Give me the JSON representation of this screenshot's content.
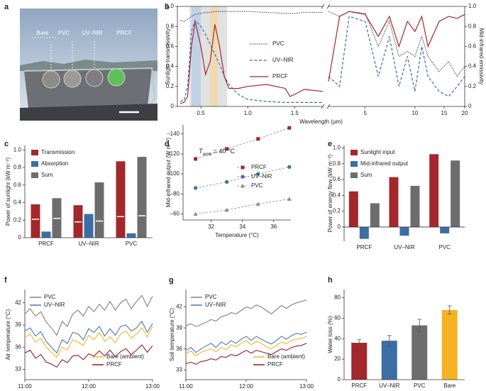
{
  "photo": {
    "panel": "a",
    "labels": [
      "Bare",
      "PVC",
      "UV–NIR",
      "PRCF"
    ]
  },
  "chart_data": [
    {
      "panel": "b",
      "type": "line",
      "xlabel": "Wavelength (µm)",
      "ylabel": "Sunlight transmissivity",
      "y2label": "Mid-infrared emissivity",
      "xlim": [
        0.25,
        1.8
      ],
      "xticks": [
        0.5,
        {
          "value": 1.0,
          "label": "1.0"
        },
        1.5
      ],
      "x2lim": [
        3,
        20
      ],
      "x2scale": "log",
      "x2ticks": [
        5,
        10,
        15,
        20
      ],
      "ylim": [
        0,
        1
      ],
      "yticks": [
        0,
        0.2,
        0.4,
        0.6,
        0.8,
        {
          "value": 1.0,
          "label": "1.0"
        }
      ],
      "y2lim": [
        0,
        1
      ],
      "y2ticks": [
        0,
        0.2,
        0.4,
        0.6,
        0.8,
        {
          "value": 1.0,
          "label": "1.0"
        }
      ],
      "bands": [
        {
          "range": [
            0.38,
            0.78
          ],
          "color": "#d9d9d9"
        },
        {
          "range": [
            0.4,
            0.5
          ],
          "color": "#b9cde6"
        },
        {
          "range": [
            0.6,
            0.68
          ],
          "color": "#f4d7a6"
        }
      ],
      "x": [
        0.28,
        0.32,
        0.36,
        0.4,
        0.44,
        0.5,
        0.55,
        0.6,
        0.65,
        0.7,
        0.75,
        0.8,
        0.9,
        1.0,
        1.2,
        1.4,
        1.45,
        1.5,
        1.6,
        1.8
      ],
      "series": [
        {
          "name": "PVC",
          "color": "#222222",
          "style": "dotted",
          "values": [
            0.86,
            0.85,
            0.87,
            0.9,
            0.92,
            0.93,
            0.94,
            0.94,
            0.95,
            0.95,
            0.95,
            0.95,
            0.95,
            0.95,
            0.94,
            0.93,
            0.93,
            0.93,
            0.94,
            0.94
          ]
        },
        {
          "name": "UV–NIR",
          "color": "#3b6ea5",
          "style": "dashed",
          "values": [
            0.05,
            0.06,
            0.2,
            0.75,
            0.86,
            0.8,
            0.72,
            0.62,
            0.52,
            0.42,
            0.3,
            0.22,
            0.12,
            0.07,
            0.05,
            0.04,
            0.04,
            0.04,
            0.04,
            0.04
          ]
        },
        {
          "name": "PRCF",
          "color": "#a3282b",
          "style": "solid",
          "values": [
            0.03,
            0.04,
            0.1,
            0.6,
            0.85,
            0.6,
            0.32,
            0.45,
            0.82,
            0.6,
            0.3,
            0.18,
            0.18,
            0.2,
            0.22,
            0.18,
            0.1,
            0.12,
            0.17,
            0.15
          ]
        }
      ],
      "x2": [
        3,
        3.5,
        4,
        5,
        6,
        7,
        8,
        9,
        10,
        11,
        12,
        14,
        16,
        18,
        20
      ],
      "series2": [
        {
          "color": "#222222",
          "style": "dotted",
          "values": [
            0.95,
            0.9,
            0.95,
            0.93,
            0.6,
            0.85,
            0.5,
            0.55,
            0.5,
            0.7,
            0.5,
            0.35,
            0.45,
            0.3,
            0.4
          ]
        },
        {
          "color": "#3b6ea5",
          "style": "dashed",
          "values": [
            0.3,
            0.2,
            0.9,
            0.85,
            0.3,
            0.7,
            0.2,
            0.5,
            0.15,
            0.6,
            0.3,
            0.15,
            0.1,
            0.2,
            0.3
          ]
        },
        {
          "color": "#a3282b",
          "style": "solid",
          "values": [
            0.25,
            0.9,
            0.95,
            0.92,
            0.7,
            0.9,
            0.6,
            0.85,
            0.75,
            0.9,
            0.6,
            0.85,
            0.9,
            0.88,
            0.92
          ]
        }
      ]
    },
    {
      "panel": "c",
      "type": "bar",
      "ylabel": "Power of sunlight (kW m⁻²)",
      "categories": [
        "PRCF",
        "UV–NIR",
        "PVC"
      ],
      "ylim": [
        0,
        1.05
      ],
      "yticks": [
        0,
        0.2,
        0.4,
        0.6,
        0.8,
        {
          "value": 1.0,
          "label": "1.0"
        }
      ],
      "series": [
        {
          "name": "Transmission",
          "color": "#a3282b",
          "values": [
            0.38,
            0.37,
            0.87
          ],
          "inner_line": [
            0.21,
            0.18,
            0.24
          ]
        },
        {
          "name": "Absorption",
          "color": "#3b6ea5",
          "values": [
            0.07,
            0.27,
            0.05
          ]
        },
        {
          "name": "Sum",
          "color": "#6d6d6d",
          "values": [
            0.45,
            0.63,
            0.92
          ],
          "inner_line": [
            0.22,
            0.19,
            0.25
          ]
        }
      ]
    },
    {
      "panel": "d",
      "type": "scatter",
      "xlabel": "Temperature (°C)",
      "ylabel": "Mid-infrared output (W m⁻²)",
      "annotation": {
        "symbol": "T",
        "subscript": "amb",
        "text": " = 40 °C"
      },
      "x": [
        31,
        33,
        35,
        37
      ],
      "xlim": [
        30.2,
        37.1
      ],
      "xticks": [
        32,
        34,
        36
      ],
      "ylim": [
        -54,
        -149
      ],
      "yticks": [
        {
          "value": -140,
          "label": "–140"
        },
        {
          "value": -120,
          "label": "–120"
        },
        {
          "value": -100,
          "label": "–100"
        },
        {
          "value": -80,
          "label": "–80"
        },
        {
          "value": -60,
          "label": "–60"
        }
      ],
      "series": [
        {
          "name": "PRCF",
          "color": "#a3282b",
          "marker": "square",
          "values": [
            -115,
            -125,
            -135,
            -146
          ]
        },
        {
          "name": "UV–NIR",
          "color": "#3b6ea5",
          "marker": "circle",
          "values": [
            -86,
            -92,
            -100,
            -107
          ]
        },
        {
          "name": "PVC",
          "color": "#8a8a8a",
          "marker": "triangle",
          "values": [
            -60,
            -64,
            -70,
            -75
          ]
        }
      ]
    },
    {
      "panel": "e",
      "type": "bar",
      "ylabel": "Power of energy flow (kW m⁻²)",
      "categories": [
        "PRCF",
        "UV–NIR",
        "PVC"
      ],
      "ylim": [
        -0.18,
        1.03
      ],
      "yticks": [
        0,
        0.2,
        0.4,
        0.6,
        0.8,
        {
          "value": 1.0,
          "label": "1.0"
        }
      ],
      "series": [
        {
          "name": "Sunlight input",
          "color": "#a3282b",
          "values": [
            0.45,
            0.63,
            0.92
          ]
        },
        {
          "name": "Mid-infrared output",
          "color": "#3b6ea5",
          "values": [
            -0.15,
            -0.11,
            -0.08
          ]
        },
        {
          "name": "Sum",
          "color": "#6d6d6d",
          "values": [
            0.3,
            0.52,
            0.84
          ]
        }
      ]
    },
    {
      "panel": "f",
      "type": "line",
      "ylabel": "Air temperature (°C)",
      "x": [
        11,
        11.083,
        11.167,
        11.25,
        11.333,
        11.417,
        11.5,
        11.583,
        11.667,
        11.75,
        11.833,
        11.917,
        12,
        12.083,
        12.167,
        12.25,
        12.333,
        12.417,
        12.5,
        12.583,
        12.667,
        12.75,
        12.833,
        12.917,
        13
      ],
      "xlim": [
        11,
        13
      ],
      "xticks": [
        {
          "value": 11,
          "label": "11:00"
        },
        {
          "value": 12,
          "label": "12:00"
        },
        {
          "value": 13,
          "label": "13:00"
        }
      ],
      "ylim": [
        31.6,
        43.8
      ],
      "yticks": [
        33,
        36,
        39,
        42
      ],
      "series": [
        {
          "name": "PVC",
          "color": "#808080",
          "values": [
            40.5,
            41.2,
            40.2,
            40.8,
            39.4,
            38.6,
            37.6,
            39.5,
            38.8,
            40.5,
            41.0,
            40.2,
            41.5,
            40.8,
            41.8,
            41.0,
            42.2,
            41.0,
            42.0,
            42.5,
            41.2,
            42.2,
            43.0,
            41.5,
            42.9
          ]
        },
        {
          "name": "UV–NIR",
          "color": "#4a78b5",
          "values": [
            38.2,
            38.6,
            37.5,
            38.1,
            36.8,
            36.0,
            35.2,
            37.0,
            36.5,
            38.0,
            37.8,
            37.0,
            38.5,
            38.0,
            38.8,
            37.5,
            38.5,
            37.6,
            38.8,
            39.0,
            38.2,
            38.6,
            39.5,
            38.0,
            39.2
          ]
        },
        {
          "name": "Bare (ambient)",
          "color": "#f2b626",
          "values": [
            37.3,
            37.8,
            36.7,
            37.2,
            36.0,
            35.3,
            34.6,
            36.0,
            35.6,
            37.0,
            36.7,
            36.2,
            37.6,
            37.0,
            38.0,
            36.8,
            37.4,
            36.6,
            37.8,
            38.2,
            37.2,
            37.8,
            38.6,
            37.4,
            38.8
          ]
        },
        {
          "name": "PRCF",
          "color": "#8b1e2b",
          "values": [
            35.2,
            35.6,
            34.5,
            35.0,
            34.0,
            33.7,
            33.3,
            34.3,
            33.9,
            34.8,
            34.9,
            34.3,
            35.1,
            34.8,
            35.5,
            34.8,
            35.6,
            34.7,
            35.4,
            35.8,
            35.0,
            35.6,
            36.3,
            35.3,
            36.2
          ]
        }
      ]
    },
    {
      "panel": "g",
      "type": "line",
      "ylabel": "Soil temperature (°C)",
      "x": [
        11,
        11.083,
        11.167,
        11.25,
        11.333,
        11.417,
        11.5,
        11.583,
        11.667,
        11.75,
        11.833,
        11.917,
        12,
        12.083,
        12.167,
        12.25,
        12.333,
        12.417,
        12.5,
        12.583,
        12.667,
        12.75,
        12.833,
        12.917,
        13
      ],
      "xlim": [
        11,
        13
      ],
      "xticks": [
        {
          "value": 11,
          "label": "11:00"
        },
        {
          "value": 12,
          "label": "12:00"
        },
        {
          "value": 13,
          "label": "13:00"
        }
      ],
      "ylim": [
        31.6,
        44.5
      ],
      "yticks": [
        33,
        36,
        39,
        42
      ],
      "series": [
        {
          "name": "PVC",
          "color": "#808080",
          "values": [
            39.3,
            39.6,
            39.2,
            39.5,
            39.8,
            40.2,
            40.0,
            40.6,
            40.8,
            41.2,
            41.0,
            41.5,
            42.0,
            41.8,
            42.3,
            42.0,
            41.5,
            41.0,
            41.6,
            42.2,
            41.8,
            42.3,
            42.6,
            42.8,
            43.0
          ]
        },
        {
          "name": "UV–NIR",
          "color": "#4a78b5",
          "values": [
            35.8,
            36.2,
            35.5,
            36.0,
            36.4,
            36.8,
            36.2,
            37.0,
            36.6,
            37.2,
            36.8,
            37.4,
            37.8,
            37.2,
            37.8,
            37.4,
            37.0,
            36.7,
            37.2,
            37.8,
            37.4,
            37.9,
            38.2,
            38.1,
            38.4
          ]
        },
        {
          "name": "Bare (ambient)",
          "color": "#f2b626",
          "values": [
            35.3,
            35.7,
            35.0,
            35.5,
            35.8,
            36.0,
            35.6,
            36.2,
            35.9,
            36.6,
            36.3,
            36.8,
            37.2,
            36.6,
            37.1,
            36.8,
            36.3,
            36.0,
            36.5,
            37.0,
            36.7,
            37.2,
            37.4,
            37.5,
            37.8
          ]
        },
        {
          "name": "PRCF",
          "color": "#8b1e2b",
          "values": [
            33.9,
            34.1,
            33.8,
            34.2,
            34.3,
            34.6,
            34.4,
            34.9,
            34.8,
            35.2,
            35.0,
            35.4,
            35.8,
            35.4,
            35.8,
            35.6,
            35.4,
            35.2,
            35.6,
            36.0,
            35.8,
            36.2,
            36.4,
            36.5,
            36.8
          ]
        }
      ]
    },
    {
      "panel": "h",
      "type": "bar",
      "ylabel": "Water loss (%)",
      "categories": [
        "PRCF",
        "UV–NIR",
        "PVC",
        "Bare"
      ],
      "values": [
        36,
        38,
        53,
        68
      ],
      "errors": [
        3,
        5,
        6,
        4
      ],
      "colors": [
        "#a3282b",
        "#3b6ea5",
        "#6d6d6d",
        "#f5b324"
      ],
      "ylim": [
        0,
        88
      ],
      "yticks": [
        0,
        20,
        40,
        60,
        80
      ]
    }
  ]
}
